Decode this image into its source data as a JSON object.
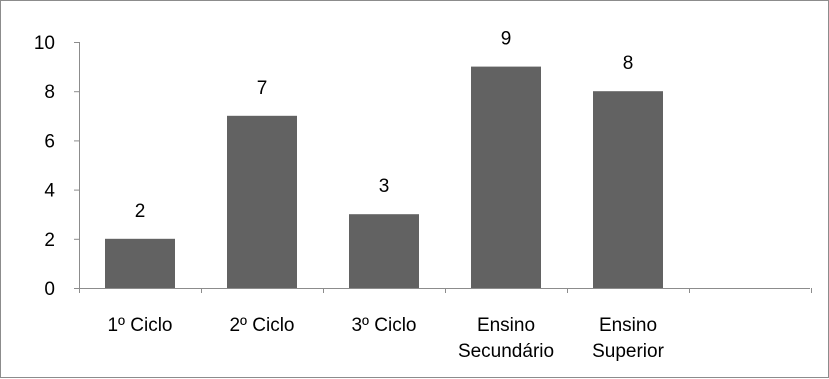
{
  "chart_data": {
    "type": "bar",
    "title": "",
    "xlabel": "",
    "ylabel": "",
    "categories": [
      [
        "1º Ciclo"
      ],
      [
        "2º Ciclo"
      ],
      [
        "3º Ciclo"
      ],
      [
        "Ensino",
        "Secundário"
      ],
      [
        "Ensino",
        "Superior"
      ]
    ],
    "values": [
      2,
      7,
      3,
      9,
      8
    ],
    "data_labels": [
      "2",
      "7",
      "3",
      "9",
      "8"
    ],
    "yticks": [
      "0",
      "2",
      "4",
      "6",
      "8",
      "10"
    ],
    "ylim": [
      0,
      10
    ],
    "grid": false,
    "legend": "none",
    "bar_color": "#626262",
    "axis_color": "#8c8c8c"
  }
}
